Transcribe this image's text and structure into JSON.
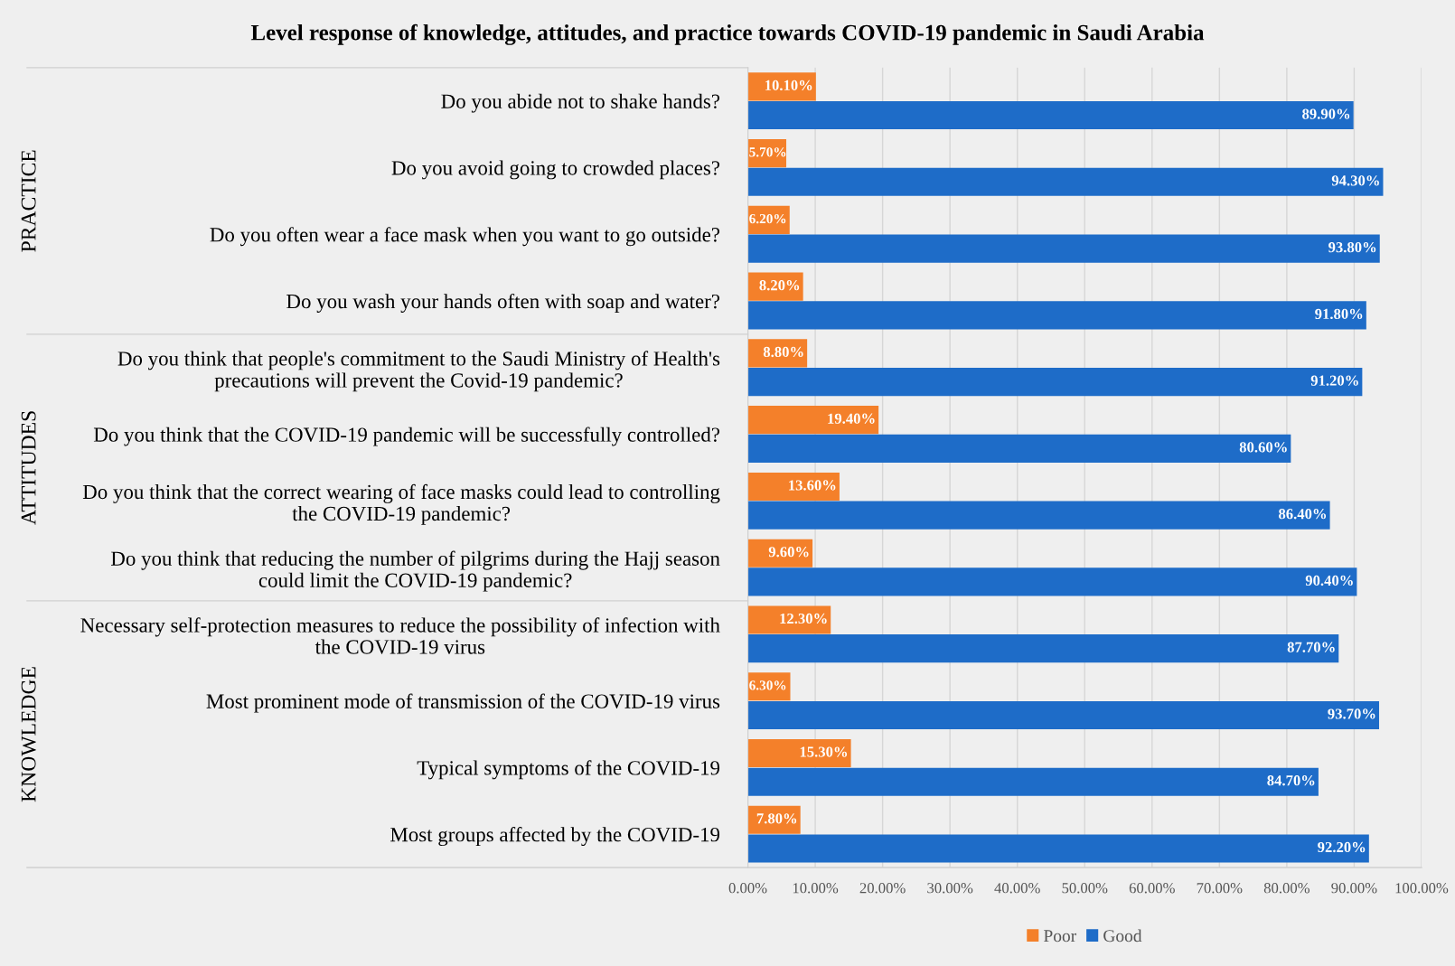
{
  "chart_data": {
    "type": "bar",
    "orientation": "horizontal",
    "title": "Level response of knowledge, attitudes, and practice towards COVID-19 pandemic in Saudi Arabia",
    "categories": [
      "Do you abide not to shake hands?",
      "Do you avoid going to crowded places?",
      "Do you often wear a face mask when you want to go outside?",
      "Do you wash your hands often with soap and water?",
      "Do you think that people's commitment to the Saudi Ministry of Health's\nprecautions will prevent the Covid-19 pandemic?",
      "Do you think that the COVID-19 pandemic will be successfully controlled?",
      "Do you think that the correct wearing of face masks could lead to controlling\nthe COVID-19 pandemic?",
      "Do you think that reducing the number of pilgrims during the Hajj season\ncould limit the COVID-19 pandemic?",
      "Necessary self-protection measures to reduce the possibility of infection with\nthe COVID-19 virus",
      "Most prominent mode of transmission of the COVID-19 virus",
      "Typical symptoms of the COVID-19",
      "Most groups affected by the COVID-19"
    ],
    "series": [
      {
        "name": "Poor",
        "color": "#f4802a",
        "values": [
          10.1,
          5.7,
          6.2,
          8.2,
          8.8,
          19.4,
          13.6,
          9.6,
          12.3,
          6.3,
          15.3,
          7.8
        ],
        "value_labels": [
          "10.10%",
          "5.70%",
          "6.20%",
          "8.20%",
          "8.80%",
          "19.40%",
          "13.60%",
          "9.60%",
          "12.30%",
          "6.30%",
          "15.30%",
          "7.80%"
        ]
      },
      {
        "name": "Good",
        "color": "#1e6cc8",
        "values": [
          89.9,
          94.3,
          93.8,
          91.8,
          91.2,
          80.6,
          86.4,
          90.4,
          87.7,
          93.7,
          84.7,
          92.2
        ],
        "value_labels": [
          "89.90%",
          "94.30%",
          "93.80%",
          "91.80%",
          "91.20%",
          "80.60%",
          "86.40%",
          "90.40%",
          "87.70%",
          "93.70%",
          "84.70%",
          "92.20%"
        ]
      }
    ],
    "xlim": [
      0,
      100
    ],
    "xticks": [
      {
        "value": 0,
        "label": "0.00%"
      },
      {
        "value": 10,
        "label": "10.00%"
      },
      {
        "value": 20,
        "label": "20.00%"
      },
      {
        "value": 30,
        "label": "30.00%"
      },
      {
        "value": 40,
        "label": "40.00%"
      },
      {
        "value": 50,
        "label": "50.00%"
      },
      {
        "value": 60,
        "label": "60.00%"
      },
      {
        "value": 70,
        "label": "70.00%"
      },
      {
        "value": 80,
        "label": "80.00%"
      },
      {
        "value": 90,
        "label": "90.00%"
      },
      {
        "value": 100,
        "label": "100.00%"
      }
    ],
    "annotations": [
      "PRACTICE",
      "ATTITUDES",
      "KNOWLEDGE"
    ],
    "grid": "x",
    "legend": "bottom"
  }
}
